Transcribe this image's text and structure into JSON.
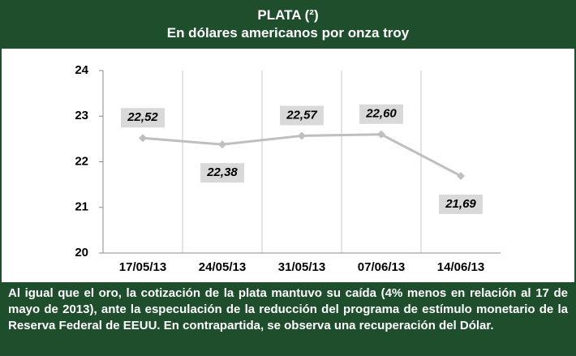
{
  "title": "PLATA (²)",
  "subtitle": "En dólares americanos por onza troy",
  "chart_data": {
    "type": "line",
    "categories": [
      "17/05/13",
      "24/05/13",
      "31/05/13",
      "07/06/13",
      "14/06/13"
    ],
    "series": [
      {
        "name": null,
        "color": "#bfbfbf",
        "values": [
          22.52,
          22.38,
          22.57,
          22.6,
          21.69
        ],
        "value_labels": [
          "22,52",
          "22,38",
          "22,57",
          "22,60",
          "21,69"
        ]
      }
    ],
    "ylim": [
      20,
      24
    ],
    "yticks": [
      20,
      21,
      22,
      23,
      24
    ],
    "grid": true
  },
  "note": "Al igual que el oro, la cotización de la plata mantuvo su caída (4% menos en relación al 17 de mayo de 2013), ante la especulación de la reducción del programa de estímulo monetario de la Reserva Federal de EEUU. En contrapartida, se observa una recuperación del Dólar."
}
